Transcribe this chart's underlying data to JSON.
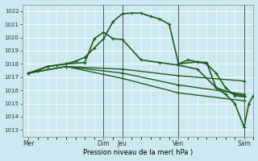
{
  "background_color": "#cce8f0",
  "line_color": "#1f5c1f",
  "xlabel": "Pression niveau de la mer( hPa )",
  "ylim": [
    1012.5,
    1022.5
  ],
  "yticks": [
    1013,
    1014,
    1015,
    1016,
    1017,
    1018,
    1019,
    1020,
    1021,
    1022
  ],
  "day_positions": [
    0,
    48,
    60,
    96,
    138
  ],
  "day_labels": [
    "Mer",
    "Dim",
    "Jeu",
    "Ven",
    "Sam"
  ],
  "xlim": [
    -4,
    144
  ],
  "vlines": [
    48,
    60,
    96,
    138
  ],
  "lines": [
    {
      "x": [
        0,
        6,
        12,
        18,
        24,
        30,
        36,
        42,
        48,
        54,
        60,
        66,
        72,
        78,
        84,
        90,
        96,
        102,
        108,
        114,
        120,
        126,
        132,
        138
      ],
      "y": [
        1017.3,
        1017.5,
        1017.8,
        1017.9,
        1018.0,
        1018.2,
        1018.5,
        1019.2,
        1019.9,
        1021.2,
        1021.8,
        1021.85,
        1021.85,
        1021.6,
        1021.4,
        1021.0,
        1018.0,
        1018.3,
        1018.15,
        1018.0,
        1017.3,
        1016.2,
        1015.6,
        1015.5
      ],
      "lw": 1.2
    },
    {
      "x": [
        0,
        12,
        24,
        36,
        42,
        48,
        54,
        60,
        72,
        84,
        96,
        108,
        120,
        132,
        138
      ],
      "y": [
        1017.3,
        1017.8,
        1018.0,
        1018.1,
        1019.9,
        1020.4,
        1019.9,
        1019.85,
        1018.3,
        1018.1,
        1017.9,
        1017.6,
        1016.2,
        1015.7,
        1015.6
      ],
      "lw": 1.2
    },
    {
      "x": [
        0,
        24,
        60,
        96,
        138
      ],
      "y": [
        1017.3,
        1017.8,
        1017.6,
        1017.1,
        1016.7
      ],
      "lw": 1.0
    },
    {
      "x": [
        0,
        24,
        60,
        96,
        138
      ],
      "y": [
        1017.3,
        1017.8,
        1017.3,
        1016.4,
        1015.7
      ],
      "lw": 1.0
    },
    {
      "x": [
        0,
        24,
        60,
        96,
        138
      ],
      "y": [
        1017.3,
        1017.8,
        1016.9,
        1015.8,
        1015.2
      ],
      "lw": 1.0
    },
    {
      "x": [
        96,
        108,
        114,
        120,
        126,
        132,
        138,
        141,
        144
      ],
      "y": [
        1018.0,
        1018.15,
        1018.1,
        1016.2,
        1015.7,
        1015.0,
        1013.2,
        1015.0,
        1015.6
      ],
      "lw": 1.2
    }
  ]
}
